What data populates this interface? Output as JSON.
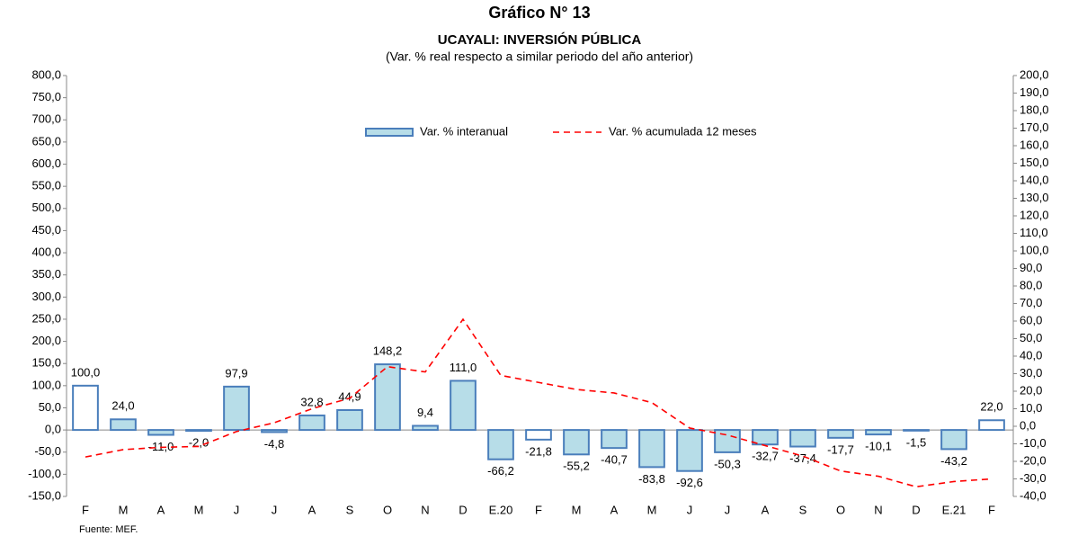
{
  "chart_data": {
    "type": "bar_line",
    "title": "Gráfico N° 13",
    "subtitle": "UCAYALI: INVERSIÓN PÚBLICA",
    "note": "(Var. % real respecto a similar periodo del año anterior)",
    "source": "Fuente: MEF.",
    "categories": [
      "F",
      "M",
      "A",
      "M",
      "J",
      "J",
      "A",
      "S",
      "O",
      "N",
      "D",
      "E.20",
      "F",
      "M",
      "A",
      "M",
      "J",
      "J",
      "A",
      "S",
      "O",
      "N",
      "D",
      "E.21",
      "F"
    ],
    "series": [
      {
        "name": "Var. % interanual",
        "type": "bar",
        "color": "#4a7ebb",
        "colors": [
          "#ffffff",
          "#b7dde8",
          "#b7dde8",
          "#b7dde8",
          "#b7dde8",
          "#b7dde8",
          "#b7dde8",
          "#b7dde8",
          "#b7dde8",
          "#b7dde8",
          "#b7dde8",
          "#b7dde8",
          "#ffffff",
          "#b7dde8",
          "#b7dde8",
          "#b7dde8",
          "#b7dde8",
          "#b7dde8",
          "#b7dde8",
          "#b7dde8",
          "#b7dde8",
          "#b7dde8",
          "#b7dde8",
          "#b7dde8",
          "#ffffff"
        ],
        "values": [
          100.0,
          24.0,
          -11.0,
          -2.0,
          97.9,
          -4.8,
          32.8,
          44.9,
          148.2,
          9.4,
          111.0,
          -66.2,
          -21.8,
          -55.2,
          -40.7,
          -83.8,
          -92.6,
          -50.3,
          -32.7,
          -37.4,
          -17.7,
          -10.1,
          -1.5,
          -43.2,
          22.0
        ],
        "value_labels": [
          "100,0",
          "24,0",
          "-11,0",
          "-2,0",
          "97,9",
          "-4,8",
          "32,8",
          "44,9",
          "148,2",
          "9,4",
          "111,0",
          "-66,2",
          "-21,8",
          "-55,2",
          "-40,7",
          "-83,8",
          "-92,6",
          "-50,3",
          "-32,7",
          "-37,4",
          "-17,7",
          "-10,1",
          "-1,5",
          "-43,2",
          "22,0"
        ]
      },
      {
        "name": "Var. % acumulada 12 meses",
        "type": "line",
        "axis": "y2",
        "color": "#ff0000",
        "values": [
          -17.5,
          -13.3,
          -12,
          -11.5,
          -3,
          2,
          10,
          16,
          34,
          31,
          61,
          29,
          25,
          21,
          19,
          13.5,
          -1,
          -5,
          -11,
          -17,
          -25.5,
          -28.5,
          -34.5,
          -31.5,
          -30
        ]
      }
    ],
    "ylim": [
      -150,
      800
    ],
    "yticks": [
      {
        "value": -150,
        "label": "-150,0"
      },
      {
        "value": -100,
        "label": "-100,0"
      },
      {
        "value": -50,
        "label": "-50,0"
      },
      {
        "value": 0,
        "label": "0,0"
      },
      {
        "value": 50,
        "label": "50,0"
      },
      {
        "value": 100,
        "label": "100,0"
      },
      {
        "value": 150,
        "label": "150,0"
      },
      {
        "value": 200,
        "label": "200,0"
      },
      {
        "value": 250,
        "label": "250,0"
      },
      {
        "value": 300,
        "label": "300,0"
      },
      {
        "value": 350,
        "label": "350,0"
      },
      {
        "value": 400,
        "label": "400,0"
      },
      {
        "value": 450,
        "label": "450,0"
      },
      {
        "value": 500,
        "label": "500,0"
      },
      {
        "value": 550,
        "label": "550,0"
      },
      {
        "value": 600,
        "label": "600,0"
      },
      {
        "value": 650,
        "label": "650,0"
      },
      {
        "value": 700,
        "label": "700,0"
      },
      {
        "value": 750,
        "label": "750,0"
      },
      {
        "value": 800,
        "label": "800,0"
      }
    ],
    "y2lim": [
      -40,
      200
    ],
    "y2ticks": [
      {
        "value": -40,
        "label": "-40,0"
      },
      {
        "value": -30,
        "label": "-30,0"
      },
      {
        "value": -20,
        "label": "-20,0"
      },
      {
        "value": -10,
        "label": "-10,0"
      },
      {
        "value": 0,
        "label": "0,0"
      },
      {
        "value": 10,
        "label": "10,0"
      },
      {
        "value": 20,
        "label": "20,0"
      },
      {
        "value": 30,
        "label": "30,0"
      },
      {
        "value": 40,
        "label": "40,0"
      },
      {
        "value": 50,
        "label": "50,0"
      },
      {
        "value": 60,
        "label": "60,0"
      },
      {
        "value": 70,
        "label": "70,0"
      },
      {
        "value": 80,
        "label": "80,0"
      },
      {
        "value": 90,
        "label": "90,0"
      },
      {
        "value": 100,
        "label": "100,0"
      },
      {
        "value": 110,
        "label": "110,0"
      },
      {
        "value": 120,
        "label": "120,0"
      },
      {
        "value": 130,
        "label": "130,0"
      },
      {
        "value": 140,
        "label": "140,0"
      },
      {
        "value": 150,
        "label": "150,0"
      },
      {
        "value": 160,
        "label": "160,0"
      },
      {
        "value": 170,
        "label": "170,0"
      },
      {
        "value": 180,
        "label": "180,0"
      },
      {
        "value": 190,
        "label": "190,0"
      },
      {
        "value": 200,
        "label": "200,0"
      }
    ],
    "legend": "top"
  }
}
